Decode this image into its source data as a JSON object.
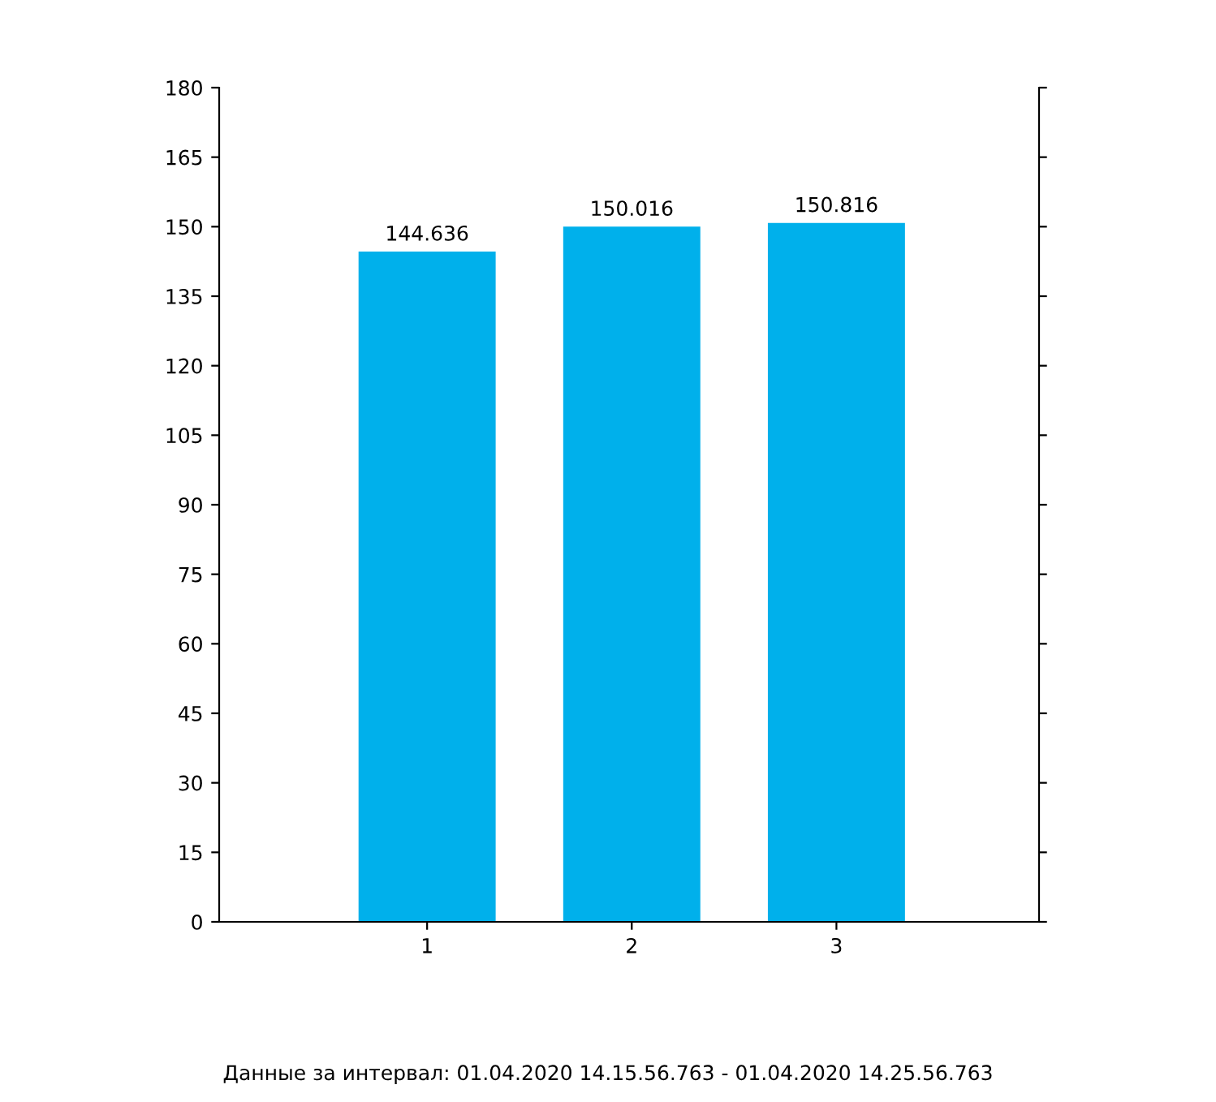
{
  "chart_data": {
    "type": "bar",
    "categories": [
      "1",
      "2",
      "3"
    ],
    "values": [
      144.636,
      150.016,
      150.816
    ],
    "color": "#00b0eb",
    "ylim": [
      0,
      180
    ],
    "yticks": [
      0,
      15,
      30,
      45,
      60,
      75,
      90,
      105,
      120,
      135,
      150,
      165,
      180
    ],
    "data_labels": true,
    "grid": false,
    "annotations": [
      "Данные за интервал: 01.04.2020 14.15.56.763 - 01.04.2020 14.25.56.763"
    ]
  }
}
